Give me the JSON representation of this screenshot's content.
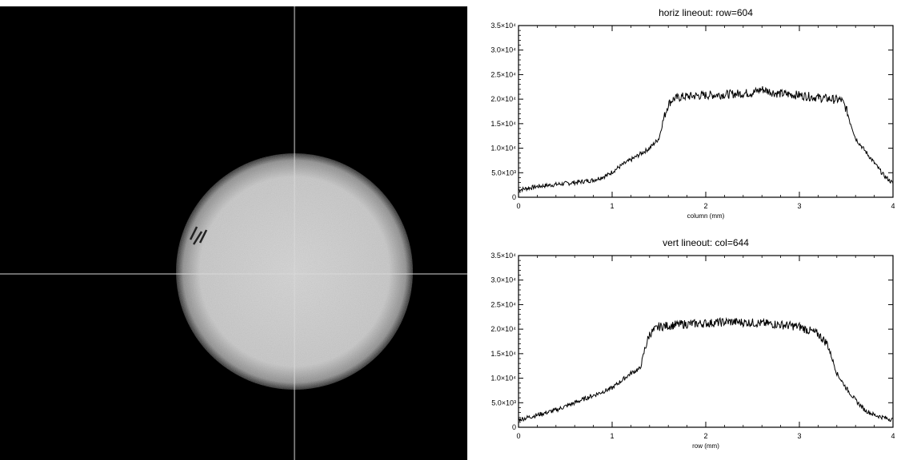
{
  "image_panel": {
    "description_icon": "beam-spot-image",
    "crosshair_color": "#d8d8d8"
  },
  "chart_data": [
    {
      "type": "line",
      "title": "horiz lineout: row=604",
      "xlabel": "column (mm)",
      "ylabel": "",
      "xlim": [
        0,
        4
      ],
      "ylim": [
        0,
        35000
      ],
      "x_ticks": [
        "0",
        "1",
        "2",
        "3",
        "4"
      ],
      "y_ticks": [
        "0",
        "5.0×10³",
        "1.0×10⁴",
        "1.5×10⁴",
        "2.0×10⁴",
        "2.5×10⁴",
        "3.0×10⁴",
        "3.5×10⁴"
      ],
      "y_tick_values": [
        0,
        5000,
        10000,
        15000,
        20000,
        25000,
        30000,
        35000
      ],
      "grid": false,
      "series": [
        {
          "x": [
            0,
            0.2,
            0.4,
            0.6,
            0.8,
            0.95,
            1.1,
            1.25,
            1.4,
            1.5,
            1.55,
            1.6,
            1.65,
            1.75,
            2.0,
            2.25,
            2.5,
            2.6,
            2.75,
            3.0,
            3.25,
            3.45,
            3.5,
            3.55,
            3.6,
            3.7,
            3.8,
            3.9,
            4.0
          ],
          "y": [
            1500,
            2200,
            2600,
            3000,
            3500,
            4500,
            6500,
            8200,
            10000,
            12000,
            16000,
            19000,
            20000,
            20500,
            20800,
            21000,
            21300,
            22000,
            21200,
            20800,
            20200,
            19800,
            18000,
            15000,
            12000,
            9500,
            7000,
            4500,
            2800
          ]
        }
      ]
    },
    {
      "type": "line",
      "title": "vert lineout: col=644",
      "xlabel": "row (mm)",
      "ylabel": "",
      "xlim": [
        0,
        4
      ],
      "ylim": [
        0,
        35000
      ],
      "x_ticks": [
        "0",
        "1",
        "2",
        "3",
        "4"
      ],
      "y_ticks": [
        "0",
        "5.0×10³",
        "1.0×10⁴",
        "1.5×10⁴",
        "2.0×10⁴",
        "2.5×10⁴",
        "3.0×10⁴",
        "3.5×10⁴"
      ],
      "y_tick_values": [
        0,
        5000,
        10000,
        15000,
        20000,
        25000,
        30000,
        35000
      ],
      "grid": false,
      "series": [
        {
          "x": [
            0,
            0.2,
            0.4,
            0.6,
            0.8,
            1.0,
            1.1,
            1.2,
            1.3,
            1.35,
            1.4,
            1.5,
            1.75,
            2.0,
            2.25,
            2.5,
            2.75,
            3.0,
            3.2,
            3.3,
            3.35,
            3.4,
            3.5,
            3.6,
            3.7,
            3.8,
            3.9,
            4.0
          ],
          "y": [
            1500,
            2500,
            3500,
            5000,
            6500,
            8000,
            9500,
            11000,
            12000,
            16000,
            19000,
            20500,
            21000,
            21200,
            21500,
            21300,
            21000,
            20500,
            19000,
            17000,
            14000,
            11000,
            8000,
            5500,
            3500,
            2500,
            2000,
            1500
          ]
        }
      ]
    }
  ]
}
